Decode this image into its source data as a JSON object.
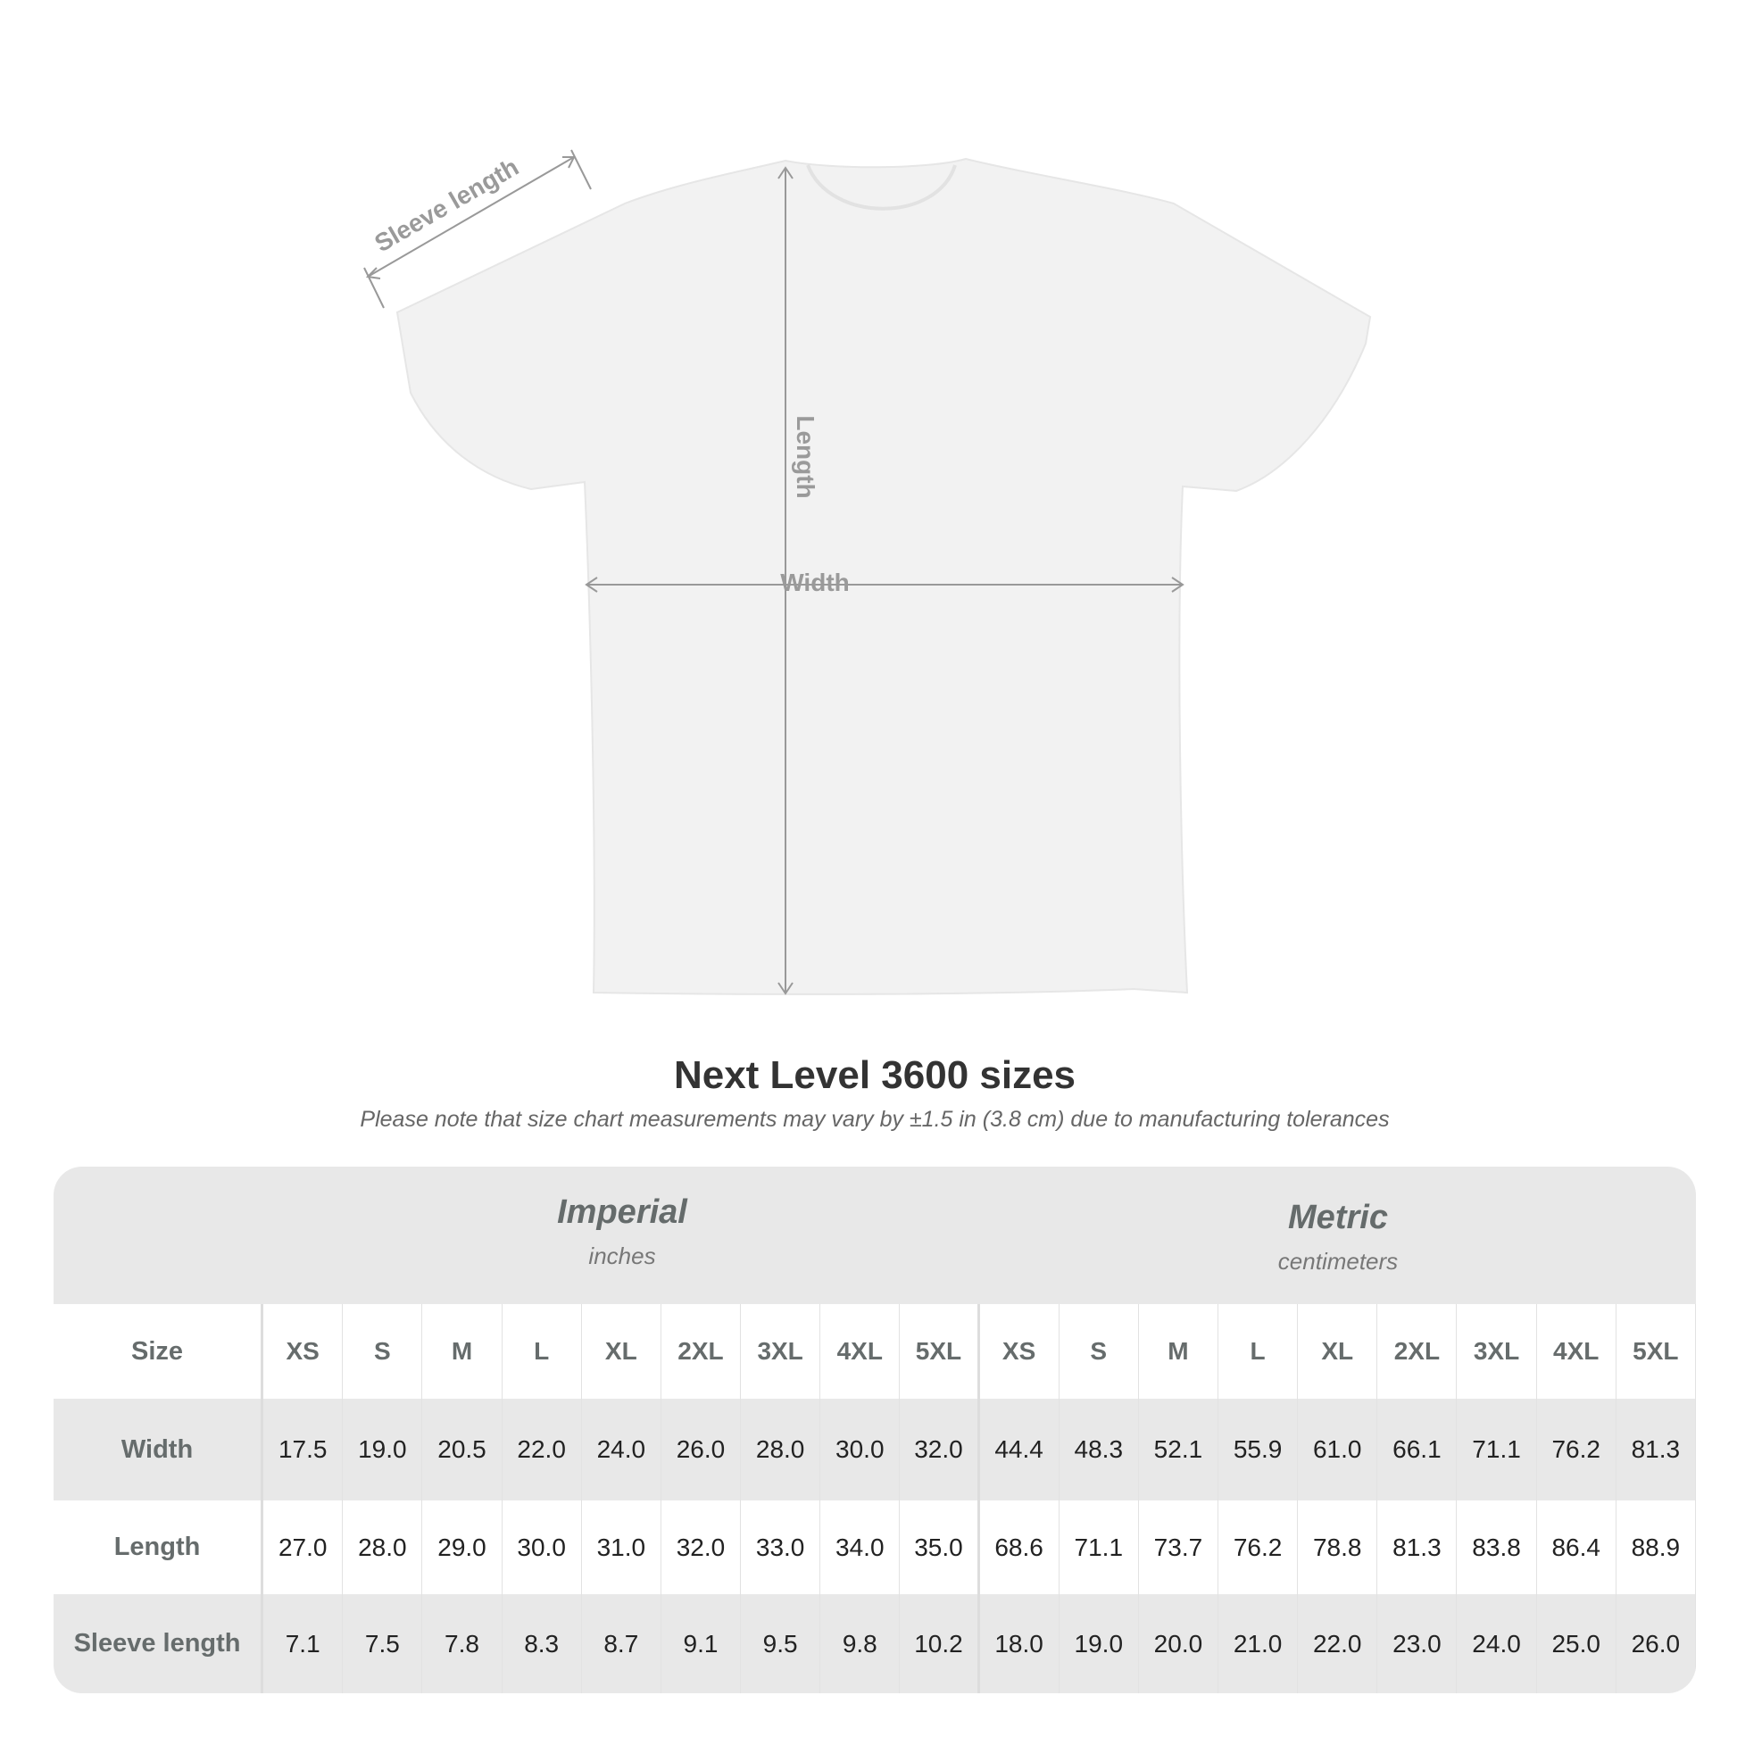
{
  "diagram": {
    "sleeve_label": "Sleeve length",
    "length_label": "Length",
    "width_label": "Width"
  },
  "title": "Next Level 3600 sizes",
  "note": "Please note that size chart measurements may vary by ±1.5 in (3.8 cm) due to manufacturing tolerances",
  "imperial": {
    "name": "Imperial",
    "unit": "inches"
  },
  "metric": {
    "name": "Metric",
    "unit": "centimeters"
  },
  "sizes": [
    "XS",
    "S",
    "M",
    "L",
    "XL",
    "2XL",
    "3XL",
    "4XL",
    "5XL"
  ],
  "rows": [
    {
      "label": "Size"
    },
    {
      "label": "Width",
      "imperial": [
        "17.5",
        "19.0",
        "20.5",
        "22.0",
        "24.0",
        "26.0",
        "28.0",
        "30.0",
        "32.0"
      ],
      "metric": [
        "44.4",
        "48.3",
        "52.1",
        "55.9",
        "61.0",
        "66.1",
        "71.1",
        "76.2",
        "81.3"
      ]
    },
    {
      "label": "Length",
      "imperial": [
        "27.0",
        "28.0",
        "29.0",
        "30.0",
        "31.0",
        "32.0",
        "33.0",
        "34.0",
        "35.0"
      ],
      "metric": [
        "68.6",
        "71.1",
        "73.7",
        "76.2",
        "78.8",
        "81.3",
        "83.8",
        "86.4",
        "88.9"
      ]
    },
    {
      "label": "Sleeve length",
      "imperial": [
        "7.1",
        "7.5",
        "7.8",
        "8.3",
        "8.7",
        "9.1",
        "9.5",
        "9.8",
        "10.2"
      ],
      "metric": [
        "18.0",
        "19.0",
        "20.0",
        "21.0",
        "22.0",
        "23.0",
        "24.0",
        "25.0",
        "26.0"
      ]
    }
  ]
}
